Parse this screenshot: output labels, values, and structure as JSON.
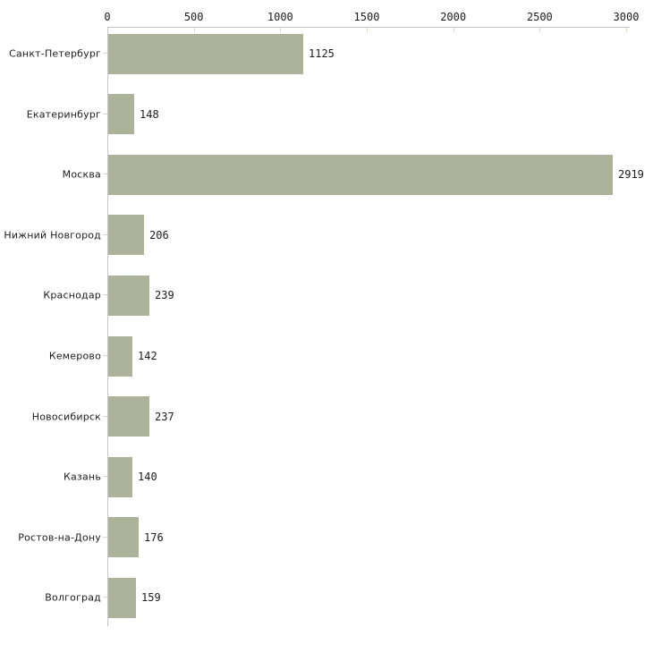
{
  "chart_data": {
    "type": "bar",
    "orientation": "horizontal",
    "categories": [
      "Санкт-Петербург",
      "Екатеринбург",
      "Москва",
      "Нижний Новгород",
      "Краснодар",
      "Кемерово",
      "Новосибирск",
      "Казань",
      "Ростов-на-Дону",
      "Волгоград"
    ],
    "values": [
      1125,
      148,
      2919,
      206,
      239,
      142,
      237,
      140,
      176,
      159
    ],
    "xticks": [
      0,
      500,
      1000,
      1500,
      2000,
      2500,
      3000
    ],
    "xlim": [
      0,
      3000
    ],
    "axis_position": "top",
    "grid": false,
    "legend": false,
    "colors": {
      "bar": "#adb29a",
      "axis_line": "#c6c6c6",
      "tick_mark": "#d9dcc3",
      "text": "#1c1c1c",
      "background": "#ffffff"
    }
  }
}
